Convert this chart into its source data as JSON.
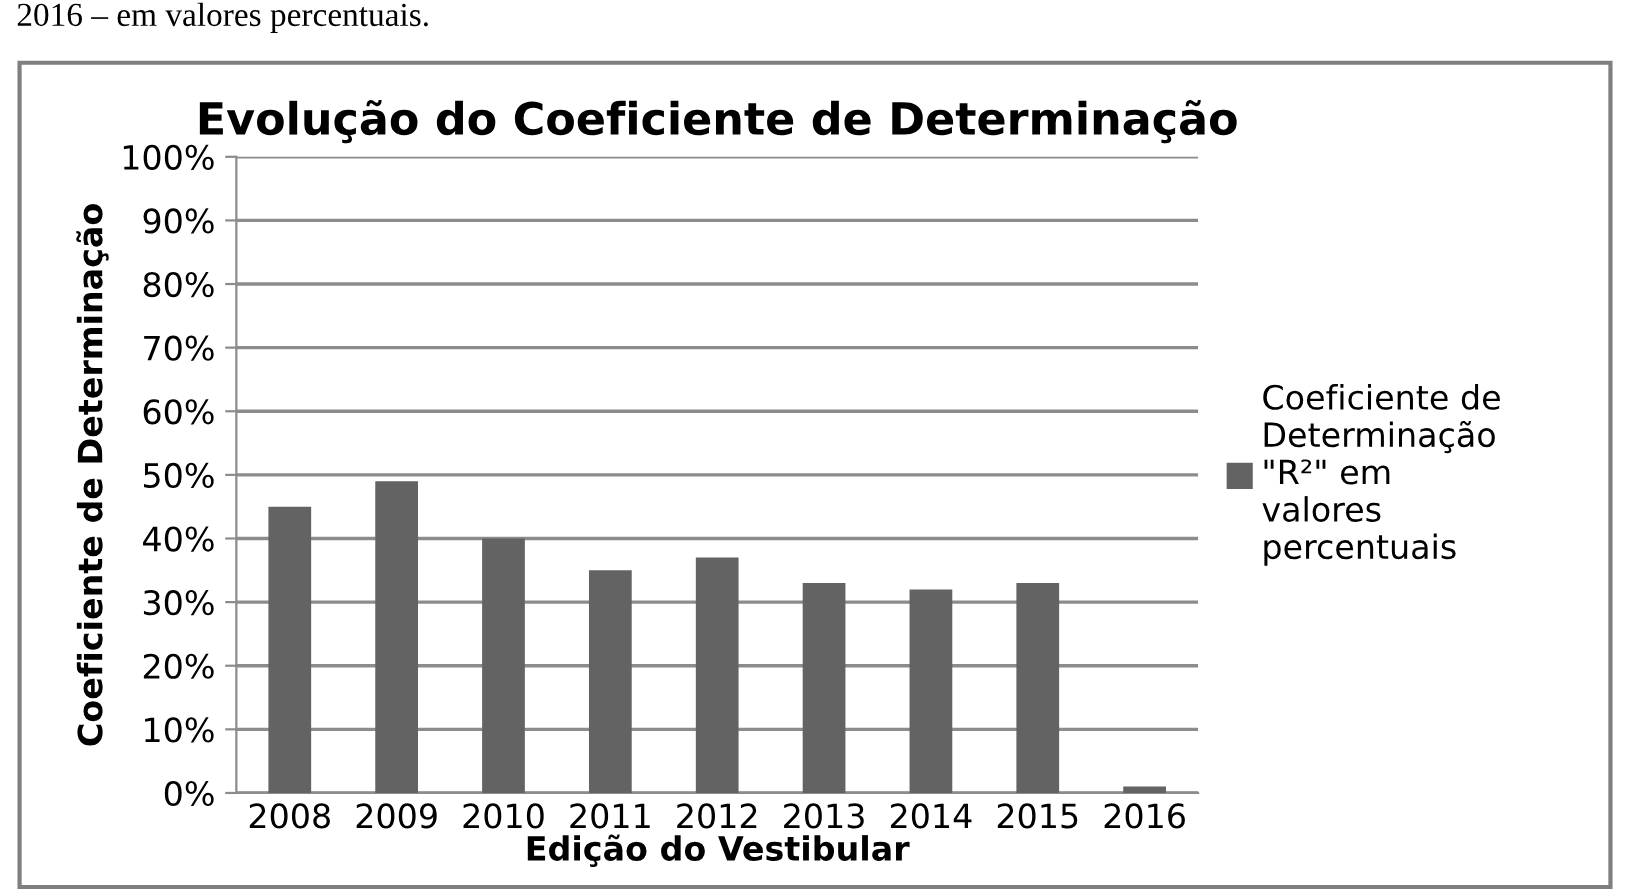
{
  "chart_data": {
    "type": "bar",
    "title": "Evolução do Coeficiente de Determinação",
    "xlabel": "Edição do Vestibular",
    "ylabel": "Coeficiente de Determinação",
    "annotations": [
      "2016 – em valores percentuais."
    ],
    "categories": [
      "2008",
      "2009",
      "2010",
      "2011",
      "2012",
      "2013",
      "2014",
      "2015",
      "2016"
    ],
    "series": [
      {
        "name": "Coeficiente de\nDeterminação\n\"R²\" em\nvalores\npercentuais",
        "color": "#636363",
        "values": [
          45,
          49,
          40,
          35,
          37,
          33,
          32,
          33,
          1
        ]
      }
    ],
    "ylim": [
      0,
      100
    ],
    "yticks": [
      {
        "value": 0,
        "label": "0%"
      },
      {
        "value": 10,
        "label": "10%"
      },
      {
        "value": 20,
        "label": "20%"
      },
      {
        "value": 30,
        "label": "30%"
      },
      {
        "value": 40,
        "label": "40%"
      },
      {
        "value": 50,
        "label": "50%"
      },
      {
        "value": 60,
        "label": "60%"
      },
      {
        "value": 70,
        "label": "70%"
      },
      {
        "value": 80,
        "label": "80%"
      },
      {
        "value": 90,
        "label": "90%"
      },
      {
        "value": 100,
        "label": "100%"
      }
    ],
    "grid": "y",
    "legend": "right"
  }
}
